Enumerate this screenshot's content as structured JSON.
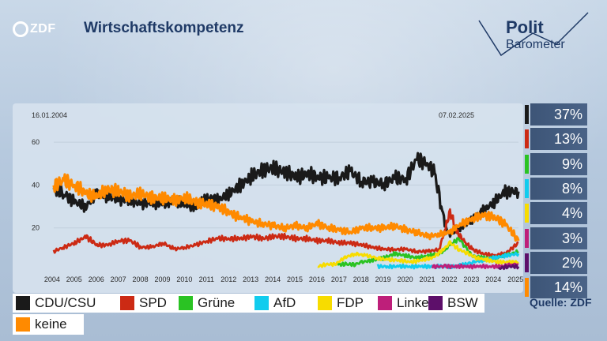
{
  "header": {
    "title": "Wirtschaftskompetenz",
    "broadcaster_logo": "ZDF",
    "program_logo_top": "Polit",
    "program_logo_bottom": "Barometer"
  },
  "source": "Quelle: ZDF",
  "chart_data": {
    "type": "line",
    "title": "Wirtschaftskompetenz",
    "start_date_label": "16.01.2004",
    "end_date_label": "07.02.2025",
    "x_ticks": [
      "2004",
      "2005",
      "2006",
      "2007",
      "2008",
      "2009",
      "2010",
      "2011",
      "2012",
      "2013",
      "2014",
      "2015",
      "2016",
      "2017",
      "2018",
      "2019",
      "2020",
      "2021",
      "2022",
      "2023",
      "2024",
      "2025"
    ],
    "y_ticks": [
      20,
      40,
      60
    ],
    "ylim": [
      0,
      70
    ],
    "xlim": [
      2004.04,
      2025.1
    ],
    "grid": true,
    "legend_position": "bottom",
    "series": [
      {
        "name": "CDU/CSU",
        "color": "#1a1a1a",
        "final_label": "37%",
        "points": [
          [
            2004.04,
            38
          ],
          [
            2004.5,
            36
          ],
          [
            2005.0,
            32
          ],
          [
            2005.5,
            30
          ],
          [
            2006.0,
            36
          ],
          [
            2006.5,
            35
          ],
          [
            2007.0,
            33
          ],
          [
            2007.5,
            33
          ],
          [
            2008.0,
            31
          ],
          [
            2008.5,
            32
          ],
          [
            2009.0,
            31
          ],
          [
            2009.5,
            33
          ],
          [
            2010.0,
            31
          ],
          [
            2010.5,
            30
          ],
          [
            2011.0,
            34
          ],
          [
            2011.5,
            33
          ],
          [
            2012.0,
            36
          ],
          [
            2012.5,
            40
          ],
          [
            2013.0,
            44
          ],
          [
            2013.5,
            47
          ],
          [
            2014.0,
            48
          ],
          [
            2014.5,
            46
          ],
          [
            2015.0,
            44
          ],
          [
            2015.5,
            45
          ],
          [
            2016.0,
            44
          ],
          [
            2016.5,
            43
          ],
          [
            2017.0,
            44
          ],
          [
            2017.5,
            46
          ],
          [
            2018.0,
            42
          ],
          [
            2018.5,
            41
          ],
          [
            2019.0,
            41
          ],
          [
            2019.5,
            43
          ],
          [
            2020.0,
            43
          ],
          [
            2020.5,
            52
          ],
          [
            2021.0,
            50
          ],
          [
            2021.3,
            45
          ],
          [
            2021.6,
            31
          ],
          [
            2021.8,
            20
          ],
          [
            2022.0,
            17
          ],
          [
            2022.5,
            20
          ],
          [
            2023.0,
            24
          ],
          [
            2023.5,
            28
          ],
          [
            2024.0,
            32
          ],
          [
            2024.5,
            37
          ],
          [
            2025.1,
            37
          ]
        ]
      },
      {
        "name": "SPD",
        "color": "#cc2a14",
        "final_label": "13%",
        "points": [
          [
            2004.04,
            9
          ],
          [
            2004.5,
            11
          ],
          [
            2005.0,
            13
          ],
          [
            2005.5,
            16
          ],
          [
            2006.0,
            12
          ],
          [
            2006.5,
            12
          ],
          [
            2007.0,
            14
          ],
          [
            2007.5,
            14
          ],
          [
            2008.0,
            11
          ],
          [
            2008.5,
            11
          ],
          [
            2009.0,
            13
          ],
          [
            2009.5,
            10
          ],
          [
            2010.0,
            11
          ],
          [
            2010.5,
            12
          ],
          [
            2011.0,
            14
          ],
          [
            2011.5,
            15
          ],
          [
            2012.0,
            15
          ],
          [
            2012.5,
            15
          ],
          [
            2013.0,
            16
          ],
          [
            2013.5,
            15
          ],
          [
            2014.0,
            16
          ],
          [
            2014.5,
            16
          ],
          [
            2015.0,
            15
          ],
          [
            2015.5,
            15
          ],
          [
            2016.0,
            14
          ],
          [
            2016.5,
            14
          ],
          [
            2017.0,
            13
          ],
          [
            2017.5,
            13
          ],
          [
            2018.0,
            12
          ],
          [
            2018.5,
            11
          ],
          [
            2019.0,
            10
          ],
          [
            2019.5,
            10
          ],
          [
            2020.0,
            10
          ],
          [
            2020.5,
            9
          ],
          [
            2021.0,
            9
          ],
          [
            2021.5,
            10
          ],
          [
            2021.8,
            20
          ],
          [
            2022.0,
            28
          ],
          [
            2022.3,
            18
          ],
          [
            2022.7,
            13
          ],
          [
            2023.0,
            10
          ],
          [
            2023.5,
            8
          ],
          [
            2024.0,
            7
          ],
          [
            2024.5,
            8
          ],
          [
            2025.1,
            13
          ]
        ]
      },
      {
        "name": "Grüne",
        "color": "#2ac323",
        "final_label": "9%",
        "points": [
          [
            2016.9,
            3
          ],
          [
            2017.3,
            3
          ],
          [
            2017.7,
            3
          ],
          [
            2018.0,
            4
          ],
          [
            2018.5,
            5
          ],
          [
            2019.0,
            6
          ],
          [
            2019.5,
            8
          ],
          [
            2020.0,
            7
          ],
          [
            2020.5,
            6
          ],
          [
            2021.0,
            7
          ],
          [
            2021.5,
            8
          ],
          [
            2021.8,
            10
          ],
          [
            2022.0,
            12
          ],
          [
            2022.4,
            15
          ],
          [
            2022.7,
            11
          ],
          [
            2023.0,
            7
          ],
          [
            2023.5,
            6
          ],
          [
            2024.0,
            6
          ],
          [
            2024.5,
            7
          ],
          [
            2025.1,
            9
          ]
        ]
      },
      {
        "name": "AfD",
        "color": "#11ccee",
        "final_label": "8%",
        "points": [
          [
            2018.7,
            2
          ],
          [
            2019.2,
            2
          ],
          [
            2019.7,
            2
          ],
          [
            2020.2,
            2
          ],
          [
            2020.7,
            2
          ],
          [
            2021.2,
            2
          ],
          [
            2021.7,
            2
          ],
          [
            2022.2,
            2
          ],
          [
            2022.7,
            3
          ],
          [
            2023.0,
            4
          ],
          [
            2023.5,
            5
          ],
          [
            2024.0,
            6
          ],
          [
            2024.5,
            7
          ],
          [
            2025.1,
            8
          ]
        ]
      },
      {
        "name": "FDP",
        "color": "#f7dc00",
        "final_label": "4%",
        "points": [
          [
            2016.0,
            2
          ],
          [
            2016.4,
            3
          ],
          [
            2016.8,
            3
          ],
          [
            2017.2,
            6
          ],
          [
            2017.7,
            8
          ],
          [
            2018.2,
            7
          ],
          [
            2018.7,
            6
          ],
          [
            2019.2,
            5
          ],
          [
            2019.7,
            5
          ],
          [
            2020.2,
            4
          ],
          [
            2020.7,
            5
          ],
          [
            2021.2,
            6
          ],
          [
            2021.7,
            10
          ],
          [
            2022.0,
            13
          ],
          [
            2022.4,
            10
          ],
          [
            2022.8,
            8
          ],
          [
            2023.2,
            6
          ],
          [
            2023.7,
            5
          ],
          [
            2024.2,
            4
          ],
          [
            2024.7,
            4
          ],
          [
            2025.1,
            4
          ]
        ]
      },
      {
        "name": "Linke",
        "color": "#be1f7a",
        "final_label": "3%",
        "points": [
          [
            2021.2,
            2
          ],
          [
            2021.8,
            2
          ],
          [
            2022.3,
            2
          ],
          [
            2022.8,
            2
          ],
          [
            2023.3,
            2
          ],
          [
            2023.8,
            2
          ],
          [
            2024.3,
            2
          ],
          [
            2024.8,
            3
          ],
          [
            2025.1,
            3
          ]
        ]
      },
      {
        "name": "BSW",
        "color": "#5d0f6a",
        "final_label": "2%",
        "points": [
          [
            2024.2,
            1
          ],
          [
            2024.6,
            2
          ],
          [
            2025.1,
            2
          ]
        ]
      },
      {
        "name": "keine",
        "color": "#ff8a00",
        "final_label": "14%",
        "points": [
          [
            2004.04,
            40
          ],
          [
            2004.5,
            42
          ],
          [
            2005.0,
            40
          ],
          [
            2005.5,
            36
          ],
          [
            2006.0,
            35
          ],
          [
            2006.5,
            38
          ],
          [
            2007.0,
            37
          ],
          [
            2007.5,
            35
          ],
          [
            2008.0,
            36
          ],
          [
            2008.5,
            34
          ],
          [
            2009.0,
            34
          ],
          [
            2009.5,
            33
          ],
          [
            2010.0,
            34
          ],
          [
            2010.5,
            32
          ],
          [
            2011.0,
            31
          ],
          [
            2011.5,
            30
          ],
          [
            2012.0,
            27
          ],
          [
            2012.5,
            25
          ],
          [
            2013.0,
            23
          ],
          [
            2013.5,
            22
          ],
          [
            2014.0,
            21
          ],
          [
            2014.5,
            20
          ],
          [
            2015.0,
            21
          ],
          [
            2015.5,
            20
          ],
          [
            2016.0,
            22
          ],
          [
            2016.5,
            20
          ],
          [
            2017.0,
            19
          ],
          [
            2017.5,
            18
          ],
          [
            2018.0,
            20
          ],
          [
            2018.5,
            20
          ],
          [
            2019.0,
            20
          ],
          [
            2019.5,
            21
          ],
          [
            2020.0,
            19
          ],
          [
            2020.5,
            18
          ],
          [
            2021.0,
            16
          ],
          [
            2021.5,
            17
          ],
          [
            2022.0,
            18
          ],
          [
            2022.5,
            22
          ],
          [
            2023.0,
            24
          ],
          [
            2023.5,
            26
          ],
          [
            2024.0,
            25
          ],
          [
            2024.5,
            22
          ],
          [
            2025.1,
            14
          ]
        ]
      }
    ]
  }
}
